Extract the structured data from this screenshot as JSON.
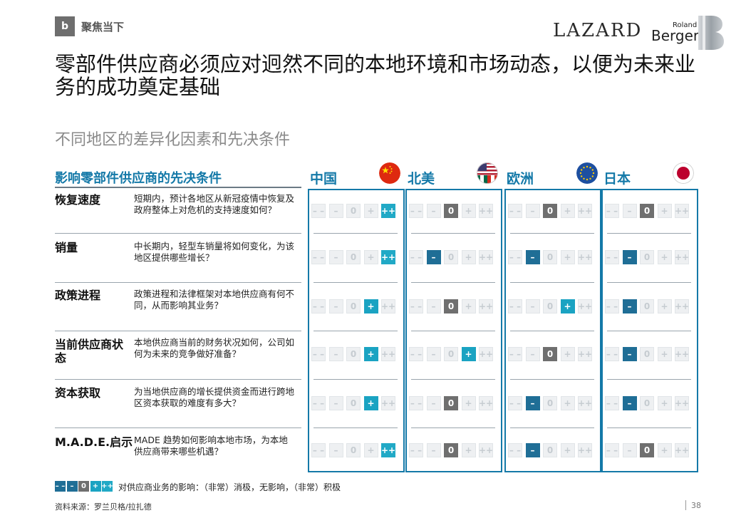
{
  "header": {
    "section_badge": "b",
    "section_label": "聚焦当下",
    "logo_lazard": "LAZARD",
    "logo_rb_small": "Roland",
    "logo_rb_big": "Berger"
  },
  "title": "零部件供应商必须应对迥然不同的本地环境和市场动态，以便为未来业务的成功奠定基础",
  "subtitle": "不同地区的差异化因素和先决条件",
  "table": {
    "factor_header": "影响零部件供应商的先决条件",
    "regions": [
      {
        "name": "中国",
        "flag": "china-flag-icon"
      },
      {
        "name": "北美",
        "flag": "usa-mexico-canada-flag-icon"
      },
      {
        "name": "欧洲",
        "flag": "eu-flag-icon"
      },
      {
        "name": "日本",
        "flag": "japan-flag-icon"
      }
    ],
    "scale": [
      "– –",
      "–",
      "0",
      "+",
      "++"
    ],
    "rows": [
      {
        "name": "恢复速度",
        "desc": "短期内，预计各地区从新冠疫情中恢复及政府整体上对危机的支持速度如何？",
        "ratings": [
          "++",
          "0",
          "0",
          "0"
        ]
      },
      {
        "name": "销量",
        "desc": "中长期内，轻型车销量将如何变化，为该地区提供哪些增长？",
        "ratings": [
          "++",
          "–",
          "–",
          "–"
        ]
      },
      {
        "name": "政策进程",
        "desc": "政策进程和法律框架对本地供应商有何不同，从而影响其业务？",
        "ratings": [
          "+",
          "0",
          "+",
          "–"
        ]
      },
      {
        "name": "当前供应商状态",
        "desc": "本地供应商当前的财务状况如何，公司如何为未来的竞争做好准备？",
        "ratings": [
          "+",
          "+",
          "0",
          "–"
        ]
      },
      {
        "name": "资本获取",
        "desc": "为当地供应商的增长提供资金而进行跨地区资本获取的难度有多大？",
        "ratings": [
          "+",
          "0",
          "–",
          "–"
        ]
      },
      {
        "name": "M.A.D.E.启示",
        "desc": "MADE 趋势如何影响本地市场，为本地供应商带来哪些机遇？",
        "ratings": [
          "++",
          "0",
          "–",
          "0"
        ]
      }
    ]
  },
  "colors": {
    "minus": "#1f6e96",
    "zero": "#6f6f6f",
    "plus": "#1aa3c2",
    "plusplus": "#21a9c6",
    "accent": "#1479a8"
  },
  "legend": {
    "text": "对供应商业务的影响：（非常）消极，无影响，（非常）积极"
  },
  "footer": {
    "source": "资料来源：罗兰贝格/拉扎德",
    "page": "38"
  }
}
